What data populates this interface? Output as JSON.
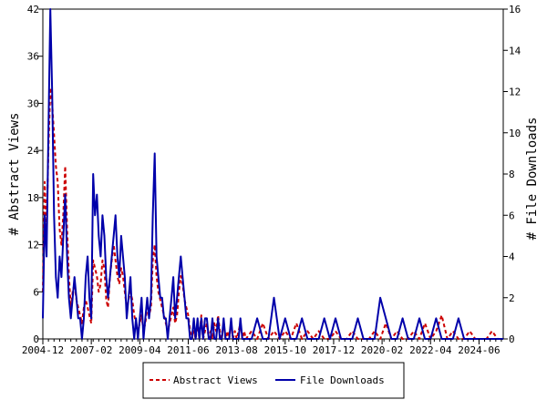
{
  "chart_data": {
    "type": "line",
    "title": "",
    "ylabel": "# Abstract Views",
    "y2label": "# File Downloads",
    "ylim": [
      0,
      42
    ],
    "y2lim": [
      0,
      16
    ],
    "yticks": [
      "0",
      "6",
      "12",
      "18",
      "24",
      "30",
      "36",
      "42"
    ],
    "y2ticks": [
      "0",
      "2",
      "4",
      "6",
      "8",
      "10",
      "12",
      "14",
      "16"
    ],
    "xlim": [
      2004.917,
      2025.5
    ],
    "xtick_labels": [
      "2004-12",
      "2007-02",
      "2009-04",
      "2011-06",
      "2013-08",
      "2015-10",
      "2017-12",
      "2020-02",
      "2022-04",
      "2024-06"
    ],
    "xtick_positions": [
      2004.917,
      2007.083,
      2009.25,
      2011.417,
      2013.583,
      2015.75,
      2017.917,
      2020.083,
      2022.25,
      2024.417
    ],
    "grid": false,
    "legend_position": "bottom-center",
    "series": [
      {
        "name": "Abstract Views",
        "axis": "left",
        "color": "#cc0000",
        "style": "dashed",
        "x": [
          2004.917,
          2005.0,
          2005.083,
          2005.167,
          2005.25,
          2005.333,
          2005.417,
          2005.5,
          2005.583,
          2005.667,
          2005.75,
          2005.833,
          2005.917,
          2006.0,
          2006.083,
          2006.167,
          2006.25,
          2006.333,
          2006.417,
          2006.5,
          2006.583,
          2006.667,
          2006.75,
          2006.833,
          2006.917,
          2007.0,
          2007.083,
          2007.167,
          2007.25,
          2007.333,
          2007.417,
          2007.5,
          2007.583,
          2007.667,
          2007.75,
          2007.833,
          2007.917,
          2008.0,
          2008.083,
          2008.167,
          2008.25,
          2008.333,
          2008.417,
          2008.5,
          2008.583,
          2008.667,
          2008.75,
          2008.833,
          2008.917,
          2009.0,
          2009.083,
          2009.167,
          2009.25,
          2009.333,
          2009.417,
          2009.5,
          2009.583,
          2009.667,
          2009.75,
          2009.833,
          2009.917,
          2010.0,
          2010.083,
          2010.167,
          2010.25,
          2010.333,
          2010.417,
          2010.5,
          2010.583,
          2010.667,
          2010.75,
          2010.833,
          2010.917,
          2011.0,
          2011.083,
          2011.167,
          2011.25,
          2011.333,
          2011.417,
          2011.5,
          2011.583,
          2011.667,
          2011.75,
          2011.833,
          2011.917,
          2012.0,
          2012.083,
          2012.167,
          2012.25,
          2012.333,
          2012.417,
          2012.5,
          2012.583,
          2012.667,
          2012.75,
          2012.833,
          2012.917,
          2013.0,
          2013.083,
          2013.167,
          2013.25,
          2013.333,
          2013.417,
          2013.5,
          2013.583,
          2013.667,
          2013.75,
          2013.833,
          2013.917,
          2014.0,
          2014.25,
          2014.5,
          2014.75,
          2015.0,
          2015.25,
          2015.5,
          2015.75,
          2016.0,
          2016.25,
          2016.5,
          2016.75,
          2017.0,
          2017.25,
          2017.5,
          2017.75,
          2018.0,
          2018.25,
          2018.5,
          2018.75,
          2019.0,
          2019.25,
          2019.5,
          2019.75,
          2020.0,
          2020.25,
          2020.5,
          2020.75,
          2021.0,
          2021.25,
          2021.5,
          2021.75,
          2022.0,
          2022.25,
          2022.5,
          2022.75,
          2023.0,
          2023.25,
          2023.5,
          2023.75,
          2024.0,
          2024.25,
          2024.5,
          2024.75,
          2025.0,
          2025.25,
          2025.5
        ],
        "values": [
          6,
          20,
          14,
          24,
          32,
          30,
          26,
          22,
          20,
          14,
          12,
          16,
          22,
          14,
          8,
          4,
          6,
          7,
          5,
          4,
          3,
          2,
          4,
          5,
          4,
          3,
          2,
          10,
          9,
          8,
          6,
          7,
          10,
          9,
          5,
          4,
          8,
          10,
          12,
          10,
          8,
          7,
          9,
          8,
          6,
          4,
          5,
          6,
          5,
          3,
          2,
          1,
          2,
          3,
          1,
          2,
          4,
          3,
          4,
          10,
          12,
          8,
          6,
          5,
          4,
          3,
          2,
          1,
          2,
          3,
          4,
          2,
          3,
          6,
          8,
          7,
          5,
          4,
          3,
          1,
          0,
          1,
          0,
          2,
          0,
          3,
          0,
          1,
          2,
          0,
          1,
          0,
          2,
          1,
          3,
          1,
          0,
          2,
          0,
          1,
          0,
          2,
          0,
          1,
          0,
          1,
          2,
          0,
          1,
          0,
          1,
          0,
          2,
          0,
          1,
          0,
          1,
          0,
          2,
          0,
          1,
          0,
          1,
          0,
          0,
          1,
          0,
          0,
          1,
          0,
          0,
          0,
          1,
          0,
          2,
          0,
          1,
          0,
          0,
          1,
          0,
          2,
          0,
          1,
          3,
          0,
          1,
          0,
          0,
          1,
          0,
          0,
          0,
          1,
          0,
          0
        ]
      },
      {
        "name": "File Downloads",
        "axis": "right",
        "color": "#0000aa",
        "style": "solid",
        "x": [
          2004.917,
          2005.0,
          2005.083,
          2005.167,
          2005.25,
          2005.333,
          2005.417,
          2005.5,
          2005.583,
          2005.667,
          2005.75,
          2005.833,
          2005.917,
          2006.0,
          2006.083,
          2006.167,
          2006.25,
          2006.333,
          2006.417,
          2006.5,
          2006.583,
          2006.667,
          2006.75,
          2006.833,
          2006.917,
          2007.0,
          2007.083,
          2007.167,
          2007.25,
          2007.333,
          2007.417,
          2007.5,
          2007.583,
          2007.667,
          2007.75,
          2007.833,
          2007.917,
          2008.0,
          2008.083,
          2008.167,
          2008.25,
          2008.333,
          2008.417,
          2008.5,
          2008.583,
          2008.667,
          2008.75,
          2008.833,
          2008.917,
          2009.0,
          2009.083,
          2009.167,
          2009.25,
          2009.333,
          2009.417,
          2009.5,
          2009.583,
          2009.667,
          2009.75,
          2009.833,
          2009.917,
          2010.0,
          2010.083,
          2010.167,
          2010.25,
          2010.333,
          2010.417,
          2010.5,
          2010.583,
          2010.667,
          2010.75,
          2010.833,
          2010.917,
          2011.0,
          2011.083,
          2011.167,
          2011.25,
          2011.333,
          2011.417,
          2011.5,
          2011.583,
          2011.667,
          2011.75,
          2011.833,
          2011.917,
          2012.0,
          2012.083,
          2012.167,
          2012.25,
          2012.333,
          2012.417,
          2012.5,
          2012.583,
          2012.667,
          2012.75,
          2012.833,
          2012.917,
          2013.0,
          2013.083,
          2013.167,
          2013.25,
          2013.333,
          2013.417,
          2013.5,
          2013.583,
          2013.667,
          2013.75,
          2013.833,
          2013.917,
          2014.0,
          2014.25,
          2014.5,
          2014.75,
          2015.0,
          2015.25,
          2015.5,
          2015.75,
          2016.0,
          2016.25,
          2016.5,
          2016.75,
          2017.0,
          2017.25,
          2017.5,
          2017.75,
          2018.0,
          2018.25,
          2018.5,
          2018.75,
          2019.0,
          2019.25,
          2019.5,
          2019.75,
          2020.0,
          2020.25,
          2020.5,
          2020.75,
          2021.0,
          2021.25,
          2021.5,
          2021.75,
          2022.0,
          2022.25,
          2022.5,
          2022.75,
          2023.0,
          2023.25,
          2023.5,
          2023.75,
          2024.0,
          2024.25,
          2024.5,
          2024.75,
          2025.0,
          2025.25,
          2025.5
        ],
        "values": [
          1,
          6,
          4,
          10,
          16,
          12,
          6,
          3,
          2,
          4,
          3,
          5,
          7,
          4,
          2,
          1,
          2,
          3,
          2,
          1,
          1,
          0,
          1,
          3,
          4,
          2,
          1,
          8,
          6,
          7,
          5,
          4,
          6,
          5,
          3,
          2,
          3,
          4,
          5,
          6,
          4,
          3,
          5,
          4,
          3,
          1,
          2,
          3,
          1,
          0,
          1,
          0,
          1,
          2,
          0,
          1,
          2,
          1,
          2,
          6,
          9,
          4,
          3,
          2,
          2,
          1,
          1,
          0,
          1,
          2,
          3,
          1,
          2,
          3,
          4,
          3,
          2,
          1,
          1,
          0,
          0,
          1,
          0,
          1,
          0,
          1,
          0,
          1,
          1,
          0,
          0,
          1,
          0,
          0,
          1,
          0,
          0,
          1,
          0,
          0,
          0,
          1,
          0,
          0,
          0,
          0,
          1,
          0,
          0,
          0,
          0,
          1,
          0,
          0,
          2,
          0,
          1,
          0,
          0,
          1,
          0,
          0,
          0,
          1,
          0,
          1,
          0,
          0,
          0,
          1,
          0,
          0,
          0,
          2,
          1,
          0,
          0,
          1,
          0,
          0,
          1,
          0,
          0,
          1,
          0,
          0,
          0,
          1,
          0,
          0,
          0,
          0,
          0,
          0,
          0,
          0
        ]
      }
    ]
  }
}
